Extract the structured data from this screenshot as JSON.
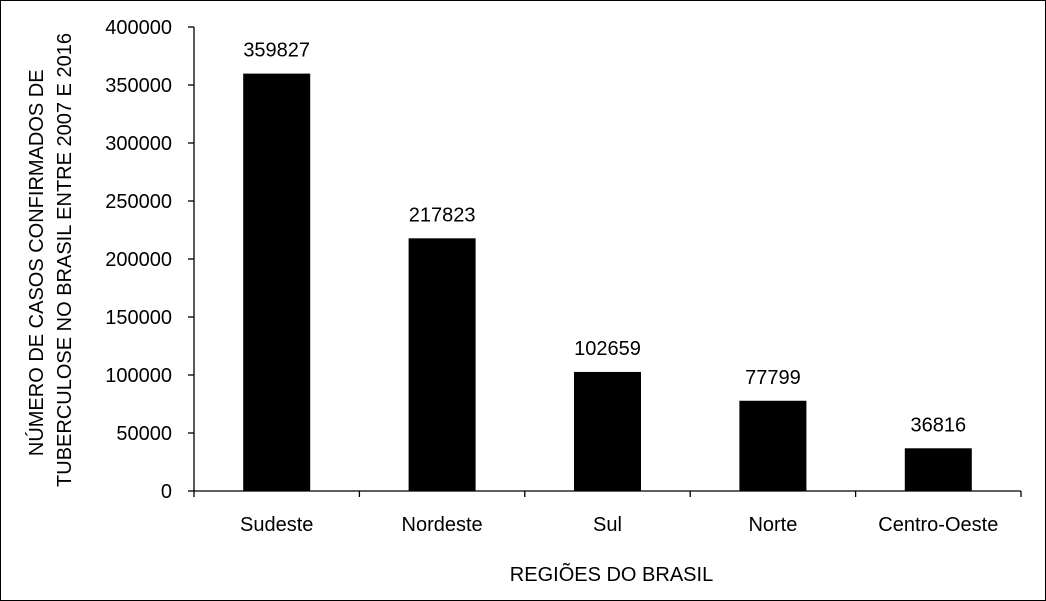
{
  "chart_data": {
    "type": "bar",
    "categories": [
      "Sudeste",
      "Nordeste",
      "Sul",
      "Norte",
      "Centro-Oeste"
    ],
    "values": [
      359827,
      217823,
      102659,
      77799,
      36816
    ],
    "data_labels": [
      "359827",
      "217823",
      "102659",
      "77799",
      "36816"
    ],
    "title": "",
    "xlabel": "REGIÕES DO BRASIL",
    "ylabel_lines": [
      "NÚMERO DE CASOS CONFIRMADOS DE",
      "TUBERCULOSE NO BRASIL ENTRE 2007 E 2016"
    ],
    "ylim": [
      0,
      400000
    ],
    "yticks": [
      0,
      50000,
      100000,
      150000,
      200000,
      250000,
      300000,
      350000,
      400000
    ],
    "ytick_labels": [
      "0",
      "50000",
      "100000",
      "150000",
      "200000",
      "250000",
      "300000",
      "350000",
      "400000"
    ],
    "grid": false,
    "legend": "none",
    "bar_color": "#000000"
  }
}
